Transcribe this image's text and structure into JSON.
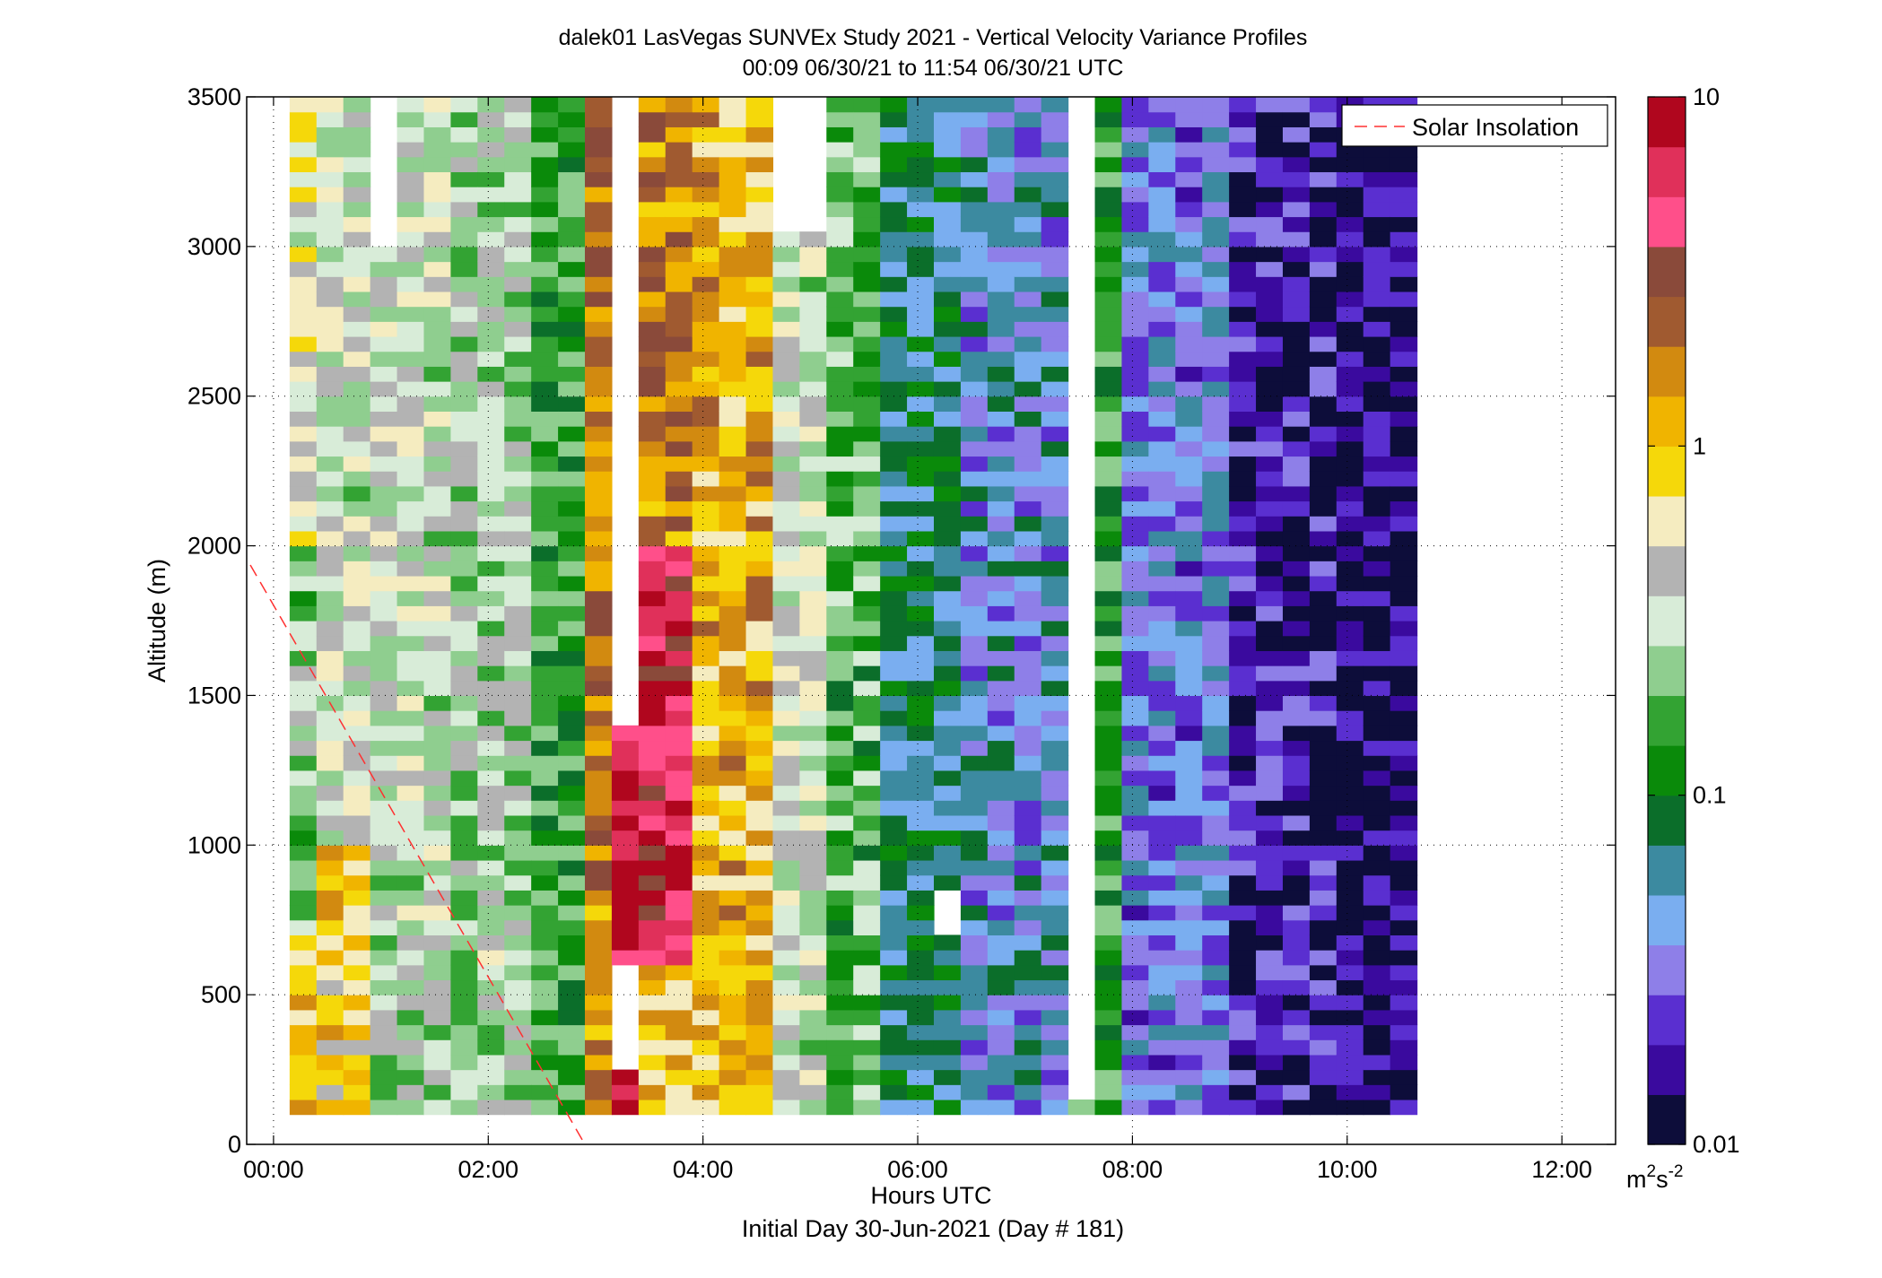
{
  "chart_data": {
    "type": "heatmap",
    "title": "dalek01 LasVegas SUNVEx Study 2021 - Vertical Velocity Variance Profiles",
    "subtitle": "00:09 06/30/21 to 11:54 06/30/21  UTC",
    "xlabel": "Hours UTC",
    "xlabel2": "Initial Day 30-Jun-2021 (Day # 181)",
    "ylabel": "Altitude (m)",
    "xlim": [
      -0.25,
      12.5
    ],
    "ylim": [
      0,
      3500
    ],
    "x_ticks": [
      0,
      2,
      4,
      6,
      8,
      10,
      12
    ],
    "x_tick_labels": [
      "00:00",
      "02:00",
      "04:00",
      "06:00",
      "08:00",
      "10:00",
      "12:00"
    ],
    "y_ticks": [
      0,
      500,
      1000,
      1500,
      2000,
      2500,
      3000,
      3500
    ],
    "y_tick_labels": [
      "0",
      "500",
      "1000",
      "1500",
      "2000",
      "2500",
      "3000",
      "3500"
    ],
    "grid": true,
    "legend_placement": "top-right",
    "colorbar": {
      "scale": "log",
      "range": [
        0.01,
        10
      ],
      "ticks": [
        0.01,
        0.1,
        1,
        10
      ],
      "tick_labels": [
        "0.01",
        "0.1",
        "1",
        "10"
      ],
      "unit_base": "m",
      "unit_sup1": "2",
      "unit_mid": "s",
      "unit_sup2": "-2",
      "colors": [
        "#0d0d3a",
        "#3a0a9e",
        "#5a2fd0",
        "#8e7fe8",
        "#7aaef0",
        "#3c8aa0",
        "#0b6e2a",
        "#0a8a0a",
        "#33a333",
        "#8fce8f",
        "#d8ecd8",
        "#b3b3b3",
        "#f5ecc0",
        "#f5d80a",
        "#f0b400",
        "#d28a10",
        "#a05a30",
        "#8a4a3a",
        "#ff4f8a",
        "#e0305a",
        "#b0061e"
      ]
    },
    "solar_insolation": {
      "name": "Solar Insolation",
      "color": "#ff3030",
      "x": [
        -0.4,
        2.9
      ],
      "y": [
        2050,
        0
      ]
    },
    "time_start_hours": 0.15,
    "time_step_hours": 0.25,
    "time_count": 42,
    "alt_start_m": 100,
    "alt_step_m": 50,
    "alt_count": 69,
    "profile_bands_log10": [
      {
        "x0": 0.0,
        "x1": 0.5,
        "y0": 100,
        "y1": 700,
        "v": -0.05
      },
      {
        "x0": 0.0,
        "x1": 0.5,
        "y0": 700,
        "y1": 2000,
        "v": -0.65
      },
      {
        "x0": 0.0,
        "x1": 0.5,
        "y0": 2000,
        "y1": 3500,
        "v": -0.3
      },
      {
        "x0": 0.5,
        "x1": 1.0,
        "y0": 100,
        "y1": 1000,
        "v": -0.1
      },
      {
        "x0": 0.5,
        "x1": 1.0,
        "y0": 1000,
        "y1": 3500,
        "v": -0.45
      },
      {
        "x0": 1.0,
        "x1": 1.75,
        "y0": 100,
        "y1": 700,
        "v": -0.55
      },
      {
        "x0": 1.0,
        "x1": 1.75,
        "y0": 700,
        "y1": 3500,
        "v": -0.45
      },
      {
        "x0": 1.75,
        "x1": 2.5,
        "y0": 100,
        "y1": 3500,
        "v": -0.55
      },
      {
        "x0": 2.5,
        "x1": 3.0,
        "y0": 100,
        "y1": 3500,
        "v": -0.85
      },
      {
        "x0": 3.0,
        "x1": 3.25,
        "y0": 100,
        "y1": 3500,
        "v": 0.25
      },
      {
        "x0": 3.25,
        "x1": 3.5,
        "y0": 100,
        "y1": 1400,
        "v": 0.85
      },
      {
        "x0": 3.5,
        "x1": 4.0,
        "y0": 100,
        "y1": 600,
        "v": 0.05
      },
      {
        "x0": 3.5,
        "x1": 4.0,
        "y0": 600,
        "y1": 2000,
        "v": 0.75
      },
      {
        "x0": 3.5,
        "x1": 4.0,
        "y0": 2000,
        "y1": 3500,
        "v": 0.25
      },
      {
        "x0": 4.0,
        "x1": 4.75,
        "y0": 100,
        "y1": 3500,
        "v": 0.05
      },
      {
        "x0": 4.75,
        "x1": 5.25,
        "y0": 100,
        "y1": 3500,
        "v": -0.45
      },
      {
        "x0": 5.25,
        "x1": 5.75,
        "y0": 100,
        "y1": 3500,
        "v": -0.75
      },
      {
        "x0": 5.75,
        "x1": 6.5,
        "y0": 100,
        "y1": 3500,
        "v": -1.15
      },
      {
        "x0": 6.5,
        "x1": 7.5,
        "y0": 100,
        "y1": 3500,
        "v": -1.35
      },
      {
        "x0": 7.5,
        "x1": 8.0,
        "y0": 100,
        "y1": 3500,
        "v": -0.85
      },
      {
        "x0": 8.0,
        "x1": 9.0,
        "y0": 100,
        "y1": 3500,
        "v": -1.45
      },
      {
        "x0": 9.0,
        "x1": 10.0,
        "y0": 100,
        "y1": 3500,
        "v": -1.75
      },
      {
        "x0": 10.0,
        "x1": 11.25,
        "y0": 100,
        "y1": 3500,
        "v": -1.85
      },
      {
        "x0": 11.25,
        "x1": 11.9,
        "y0": 100,
        "y1": 3500,
        "v": -1.55
      }
    ],
    "missing_regions": [
      {
        "x0": 3.25,
        "x1": 3.5,
        "y0": 1400,
        "y1": 3500
      },
      {
        "x0": 3.25,
        "x1": 3.5,
        "y0": 250,
        "y1": 600
      },
      {
        "x0": 1.0,
        "x1": 1.25,
        "y0": 3000,
        "y1": 3500
      },
      {
        "x0": 7.5,
        "x1": 7.75,
        "y0": 150,
        "y1": 3500
      },
      {
        "x0": 4.75,
        "x1": 5.25,
        "y0": 3050,
        "y1": 3500
      },
      {
        "x0": 6.25,
        "x1": 6.5,
        "y0": 700,
        "y1": 850
      }
    ]
  }
}
